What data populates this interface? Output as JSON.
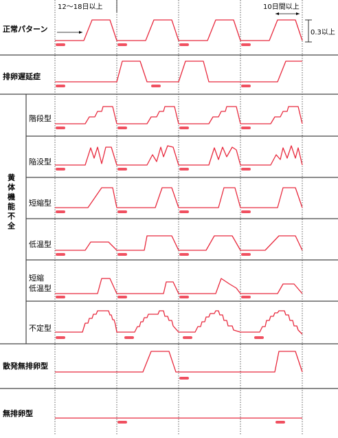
{
  "labels": {
    "normal": "正常パターン",
    "delayed": "排卵遅延症",
    "luteal_group": [
      "黄",
      "体",
      "機",
      "能",
      "不",
      "全"
    ],
    "stepwise": "階段型",
    "sunken": "陥没型",
    "shortened": "短縮型",
    "lowtemp": "低温型",
    "short_low_1": "短縮",
    "short_low_2": "低温型",
    "irregular": "不定型",
    "sporadic": "散発無排卵型",
    "anovulatory": "無排卵型"
  },
  "annotations": {
    "cycle_days": "12～18日以上",
    "high_days": "10日間以上",
    "temp_rise": "0.3以上"
  },
  "colors": {
    "curve": "#e8283c",
    "marker": "#f05060",
    "grid": "#333333",
    "divider": "#444444"
  }
}
